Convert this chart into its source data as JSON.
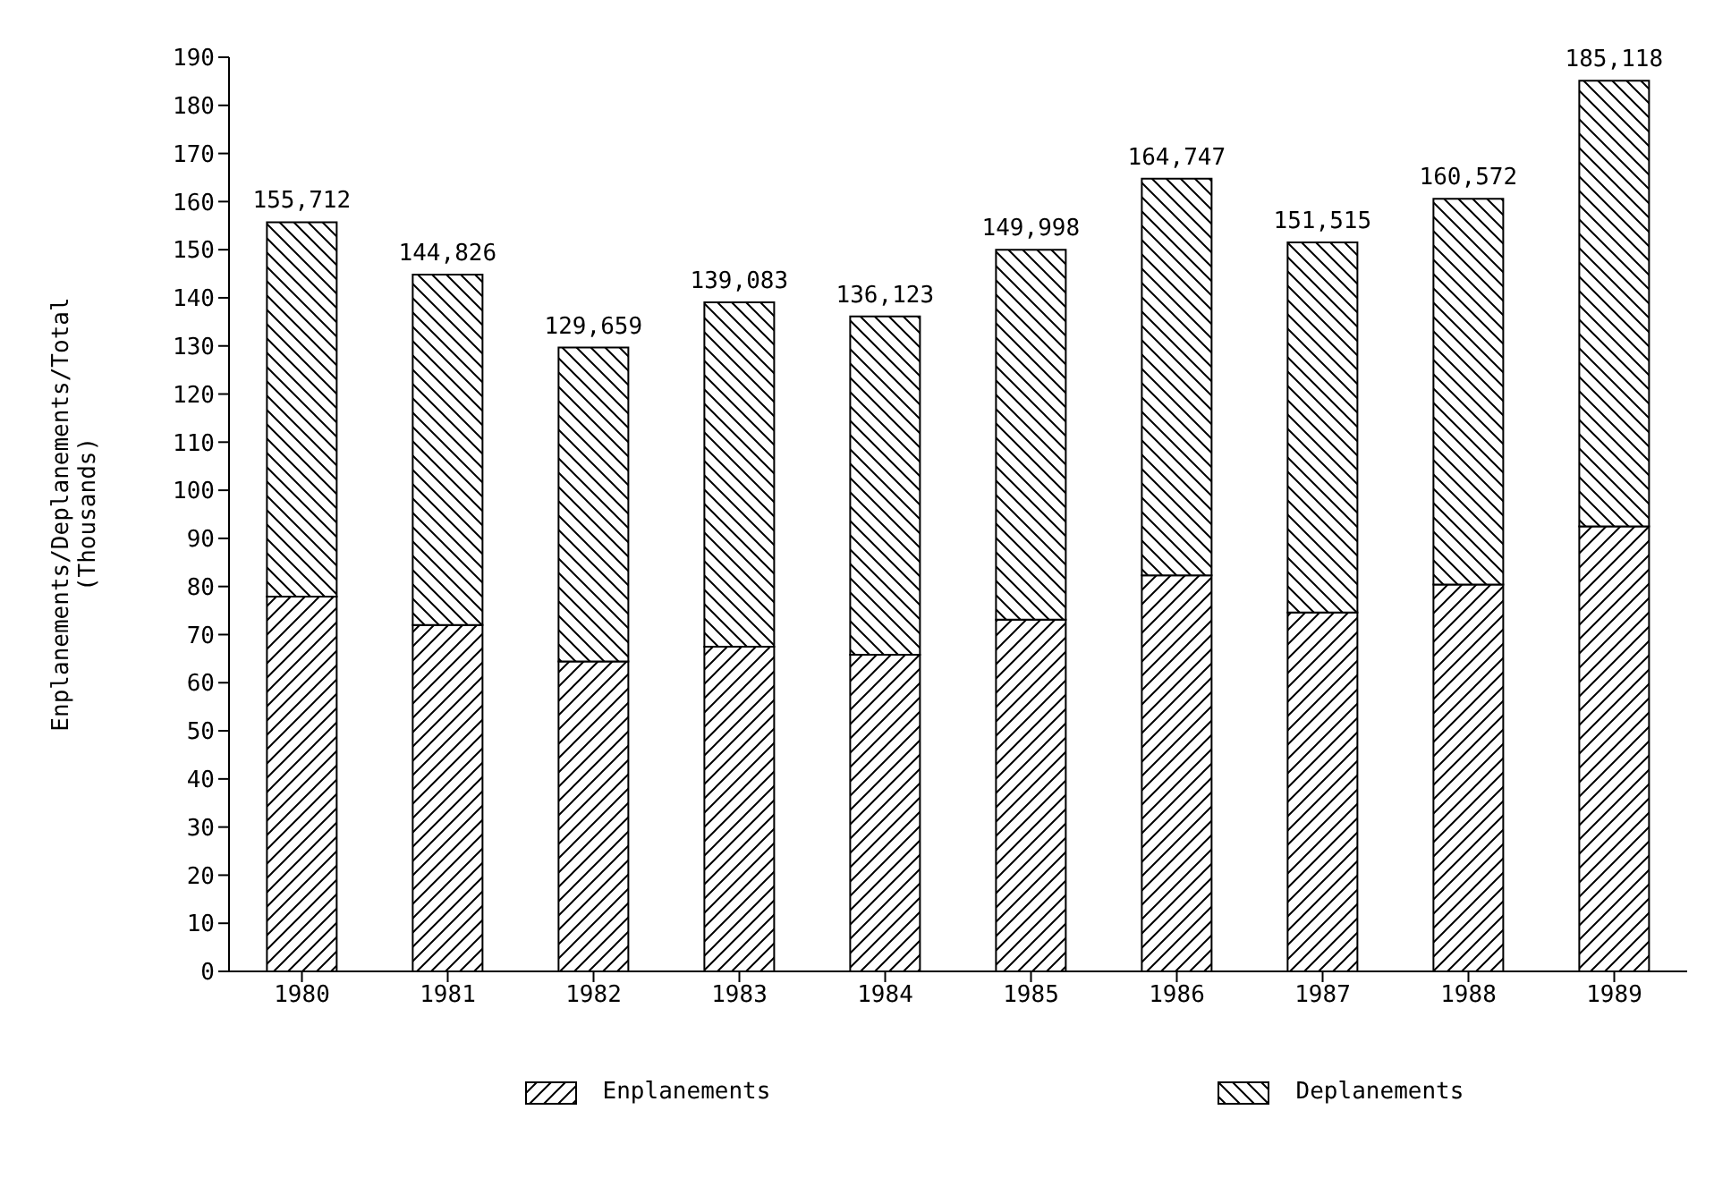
{
  "chart_data": {
    "type": "bar",
    "stacked": true,
    "ylabel": "Enplanements/Deplanements/Total\n(Thousands)",
    "categories": [
      "1980",
      "1981",
      "1982",
      "1983",
      "1984",
      "1985",
      "1986",
      "1987",
      "1988",
      "1989"
    ],
    "series": [
      {
        "name": "Enplanements",
        "color": "#000000",
        "values": [
          77.9,
          72.0,
          64.4,
          67.5,
          65.8,
          73.1,
          82.3,
          74.6,
          80.4,
          92.5
        ]
      },
      {
        "name": "Deplanements",
        "color": "#000000",
        "values": [
          77.812,
          72.826,
          65.259,
          71.583,
          70.323,
          76.898,
          82.447,
          76.915,
          80.172,
          92.618
        ]
      }
    ],
    "totals": [
      "155,712",
      "144,826",
      "129,659",
      "139,083",
      "136,123",
      "149,998",
      "164,747",
      "151,515",
      "160,572",
      "185,118"
    ],
    "ylim": [
      0,
      190
    ],
    "yticks": [
      0,
      10,
      20,
      30,
      40,
      50,
      60,
      70,
      80,
      90,
      100,
      110,
      120,
      130,
      140,
      150,
      160,
      170,
      180,
      190
    ],
    "legend": "bottom"
  }
}
